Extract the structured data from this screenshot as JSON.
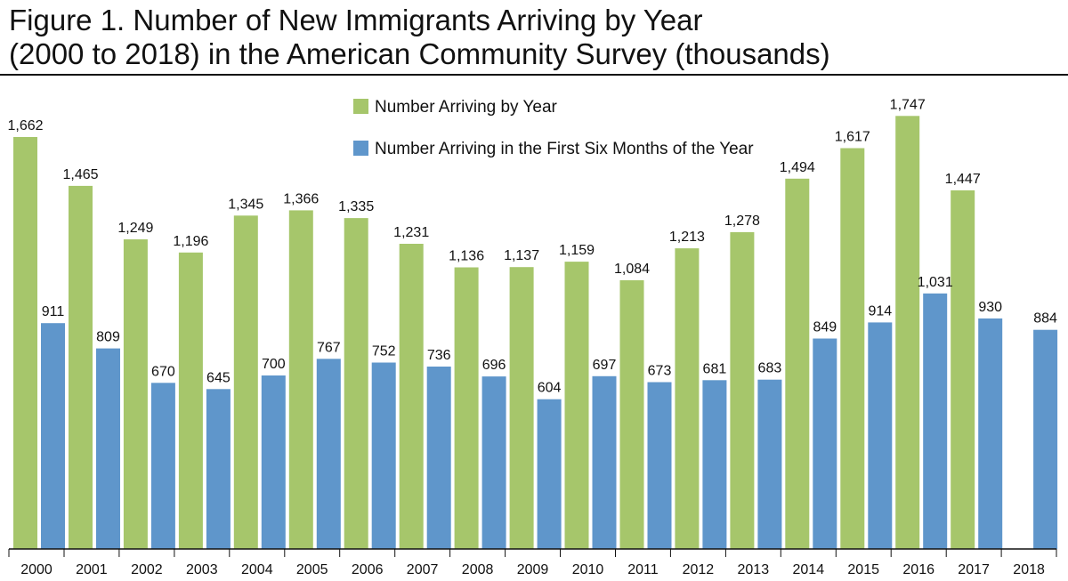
{
  "header": {
    "title_line1": "Figure 1. Number of New Immigrants Arriving by Year",
    "title_line2": "(2000 to 2018) in the American Community Survey (thousands)"
  },
  "colors": {
    "green": "#a6c66b",
    "blue": "#5f96cb",
    "axis": "#111111"
  },
  "chart_data": {
    "type": "bar",
    "title": "Figure 1. Number of New Immigrants Arriving by Year (2000 to 2018) in the American Community Survey (thousands)",
    "xlabel": "",
    "ylabel": "",
    "ylim": [
      0,
      1800
    ],
    "grid": false,
    "legend_position": "top-center",
    "categories": [
      "2000",
      "2001",
      "2002",
      "2003",
      "2004",
      "2005",
      "2006",
      "2007",
      "2008",
      "2009",
      "2010",
      "2011",
      "2012",
      "2013",
      "2014",
      "2015",
      "2016",
      "2017",
      "2018"
    ],
    "series": [
      {
        "name": "Number Arriving by Year",
        "color": "#a6c66b",
        "values": [
          1662,
          1465,
          1249,
          1196,
          1345,
          1366,
          1335,
          1231,
          1136,
          1137,
          1159,
          1084,
          1213,
          1278,
          1494,
          1617,
          1747,
          1447,
          null
        ],
        "labels": [
          "1,662",
          "1,465",
          "1,249",
          "1,196",
          "1,345",
          "1,366",
          "1,335",
          "1,231",
          "1,136",
          "1,137",
          "1,159",
          "1,084",
          "1,213",
          "1,278",
          "1,494",
          "1,617",
          "1,747",
          "1,447",
          ""
        ]
      },
      {
        "name": "Number Arriving in the First Six Months of the Year",
        "color": "#5f96cb",
        "values": [
          911,
          809,
          670,
          645,
          700,
          767,
          752,
          736,
          696,
          604,
          697,
          673,
          681,
          683,
          849,
          914,
          1031,
          930,
          884
        ],
        "labels": [
          "911",
          "809",
          "670",
          "645",
          "700",
          "767",
          "752",
          "736",
          "696",
          "604",
          "697",
          "673",
          "681",
          "683",
          "849",
          "914",
          "1,031",
          "930",
          "884"
        ]
      }
    ]
  }
}
